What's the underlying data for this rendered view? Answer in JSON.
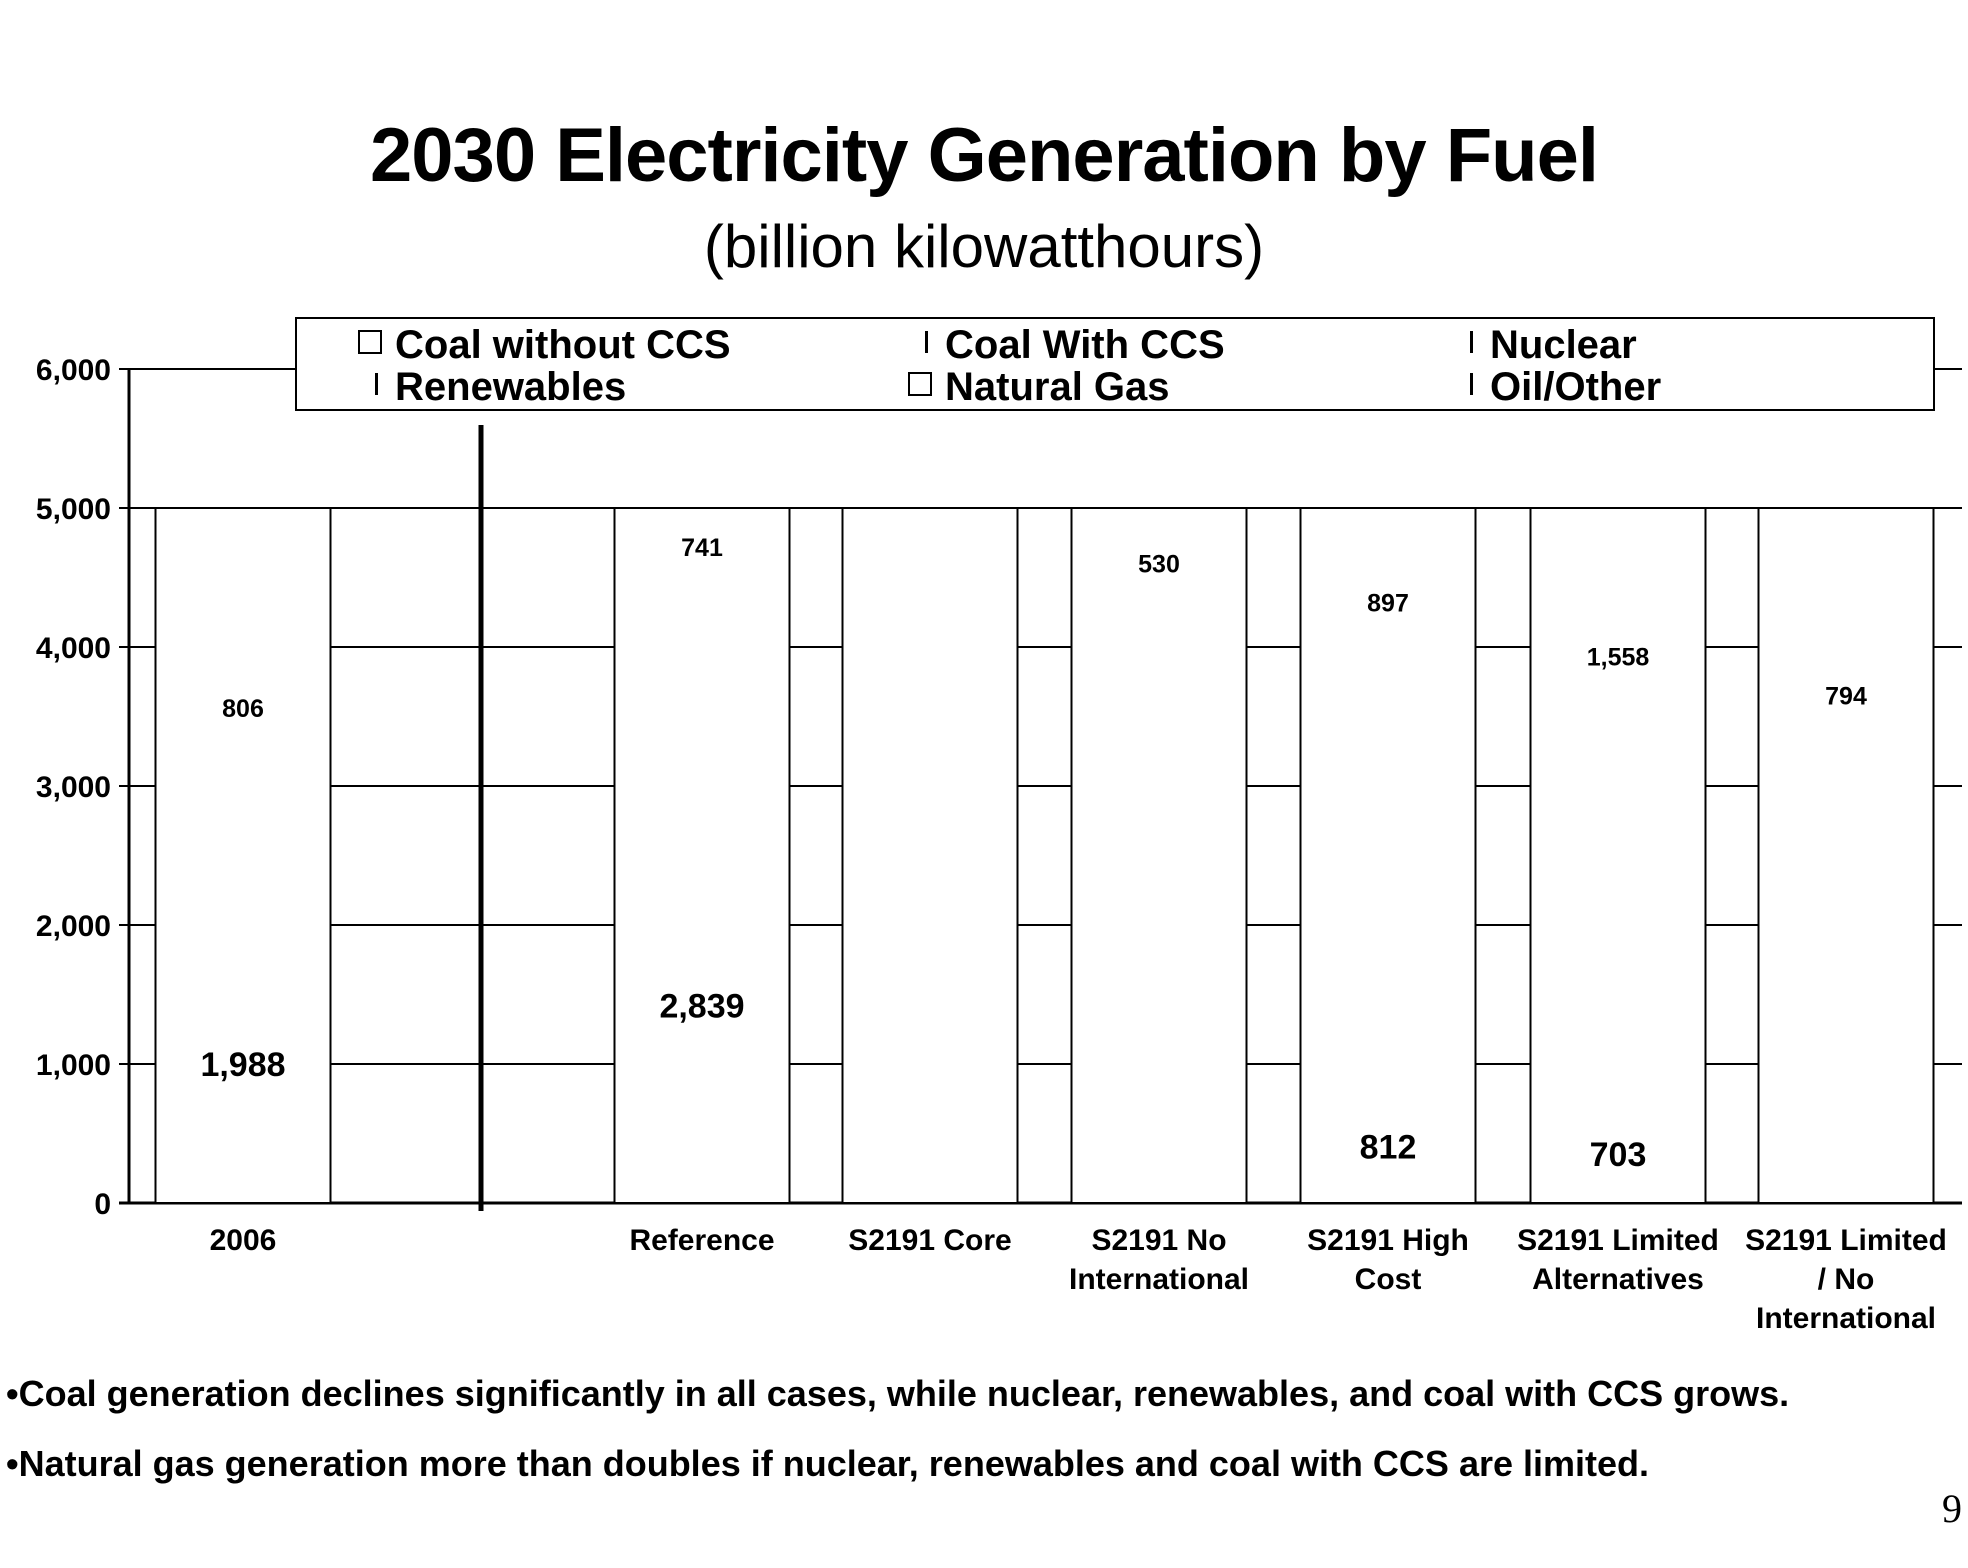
{
  "slide": {
    "title": "2030 Electricity Generation by Fuel",
    "subtitle": "(billion kilowatthours)",
    "bullets": [
      "•Coal generation declines significantly in all cases, while nuclear, renewables, and coal with CCS grows.",
      "•Natural gas generation more than doubles if nuclear, renewables and coal with CCS are limited."
    ],
    "page_number": "9"
  },
  "chart_data": {
    "type": "bar",
    "stacked": true,
    "title": "2030 Electricity Generation by Fuel",
    "subtitle": "(billion kilowatthours)",
    "xlabel": "",
    "ylabel": "",
    "ylim": [
      0,
      6000
    ],
    "yticks": [
      0,
      1000,
      2000,
      3000,
      4000,
      5000,
      6000
    ],
    "ytick_labels": [
      "0",
      "1,000",
      "2,000",
      "3,000",
      "4,000",
      "5,000",
      "6,000"
    ],
    "grid": true,
    "legend_position": "top",
    "legend": [
      "Coal without CCS",
      "Coal With CCS",
      "Nuclear",
      "Renewables",
      "Natural Gas",
      "Oil/Other"
    ],
    "categories": [
      {
        "label_lines": [
          "2006"
        ]
      },
      {
        "label_lines": [
          "Reference"
        ]
      },
      {
        "label_lines": [
          "S2191 Core"
        ]
      },
      {
        "label_lines": [
          "S2191 No",
          "International"
        ]
      },
      {
        "label_lines": [
          "S2191 High",
          "Cost"
        ]
      },
      {
        "label_lines": [
          "S2191 Limited",
          "Alternatives"
        ]
      },
      {
        "label_lines": [
          "S2191 Limited",
          "/ No",
          "International"
        ]
      }
    ],
    "data_labels": [
      {
        "category": 0,
        "text": "1,988",
        "value_position": 1000,
        "size": "large"
      },
      {
        "category": 0,
        "text": "806",
        "value_position": 3560,
        "size": "small"
      },
      {
        "category": 1,
        "text": "2,839",
        "value_position": 1420,
        "size": "large"
      },
      {
        "category": 1,
        "text": "741",
        "value_position": 4720,
        "size": "small"
      },
      {
        "category": 3,
        "text": "530",
        "value_position": 4600,
        "size": "small"
      },
      {
        "category": 4,
        "text": "812",
        "value_position": 406,
        "size": "large"
      },
      {
        "category": 4,
        "text": "897",
        "value_position": 4320,
        "size": "small"
      },
      {
        "category": 5,
        "text": "703",
        "value_position": 351,
        "size": "large"
      },
      {
        "category": 5,
        "text": "1,558",
        "value_position": 3930,
        "size": "small"
      },
      {
        "category": 6,
        "text": "794",
        "value_position": 3650,
        "size": "small"
      }
    ]
  }
}
